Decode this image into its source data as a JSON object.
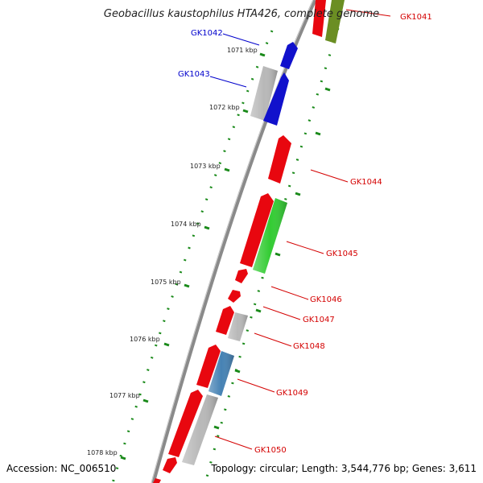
{
  "header": {
    "title": "Geobacillus kaustophilus HTA426, complete genome"
  },
  "footer": {
    "accession": "Accession: NC_006510",
    "topology": "Topology: circular; Length: 3,544,776 bp; Genes: 3,611"
  },
  "colors": {
    "backbone": "#8a8a8a",
    "ticks": "#1a8a1a",
    "gene_red": "#e8070f",
    "gene_blue": "#1111cc",
    "gene_green": "#33cc33",
    "gene_olive": "#6b8e23",
    "gene_gray": "#b8b8b8",
    "gene_steel": "#4682b4",
    "label_red": "#d40000",
    "label_blue": "#0000cc"
  },
  "kbp_labels": [
    "1071 kbp",
    "1072 kbp",
    "1073 kbp",
    "1074 kbp",
    "1075 kbp",
    "1076 kbp",
    "1077 kbp",
    "1078 kbp"
  ],
  "genes": [
    {
      "id": "GK1041",
      "label_color": "red"
    },
    {
      "id": "GK1042",
      "label_color": "blue"
    },
    {
      "id": "GK1043",
      "label_color": "blue"
    },
    {
      "id": "GK1044",
      "label_color": "red"
    },
    {
      "id": "GK1045",
      "label_color": "red"
    },
    {
      "id": "GK1046",
      "label_color": "red"
    },
    {
      "id": "GK1047",
      "label_color": "red"
    },
    {
      "id": "GK1048",
      "label_color": "red"
    },
    {
      "id": "GK1049",
      "label_color": "red"
    },
    {
      "id": "GK1050",
      "label_color": "red"
    }
  ]
}
